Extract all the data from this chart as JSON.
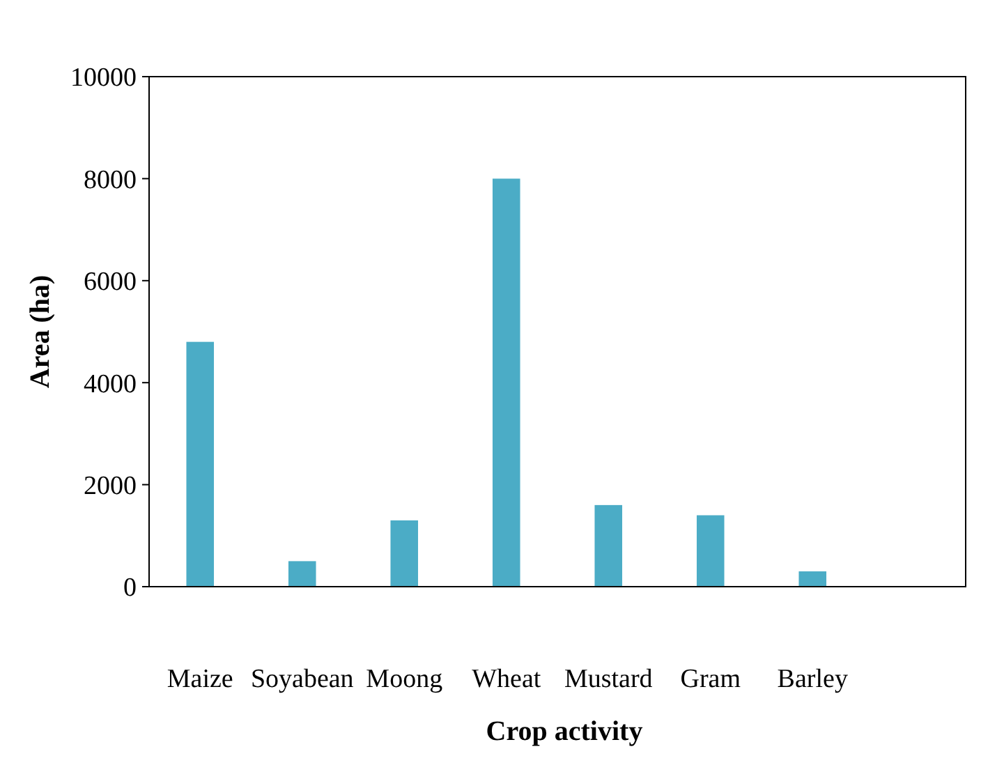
{
  "chart_data": {
    "type": "bar",
    "xlabel": "Crop activity",
    "ylabel": "Area (ha)",
    "categories": [
      "Maize",
      "Soyabean",
      "Moong",
      "Wheat",
      "Mustard",
      "Gram",
      "Barley",
      null
    ],
    "values": [
      4800,
      500,
      1300,
      8000,
      1600,
      1400,
      300,
      null
    ],
    "color": "#4bacc6",
    "ylim": [
      0,
      10000
    ],
    "yticks": [
      0,
      2000,
      4000,
      6000,
      8000,
      10000
    ],
    "grid": false
  }
}
